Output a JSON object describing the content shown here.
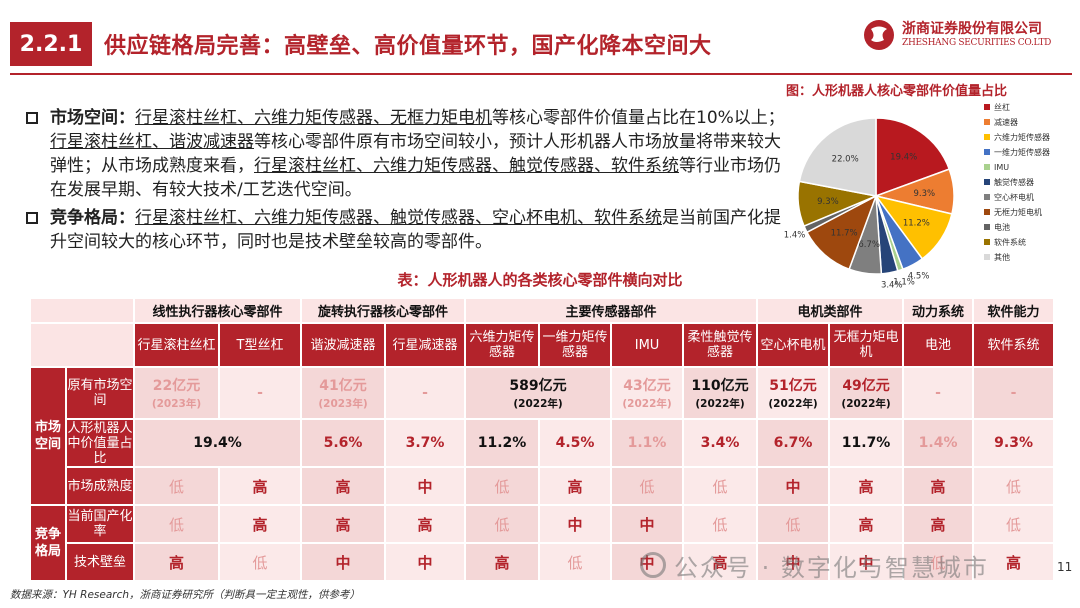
{
  "header": {
    "section_no": "2.2.1",
    "title": "供应链格局完善：高壁垒、高价值量环节，国产化降本空间大",
    "company_cn": "浙商证券股份有限公司",
    "company_en": "ZHESHANG SECURITIES CO.LTD"
  },
  "bullets": [
    {
      "label": "市场空间：",
      "segments": [
        {
          "t": "行星滚柱丝杠、六维力矩传感器、无框力矩电机",
          "u": true
        },
        {
          "t": "等核心零部件价值量占比在10%以上；",
          "u": false
        },
        {
          "t": "行星滚柱丝杠、谐波减速器",
          "u": true
        },
        {
          "t": "等核心零部件原有市场空间较小，预计人形机器人市场放量将带来较大弹性；从市场成熟度来看，",
          "u": false
        },
        {
          "t": "行星滚柱丝杠、六维力矩传感器、触觉传感器、软件系统",
          "u": true
        },
        {
          "t": "等行业市场仍在发展早期、有较大技术/工艺迭代空间。",
          "u": false
        }
      ]
    },
    {
      "label": "竞争格局：",
      "segments": [
        {
          "t": "行星滚柱丝杠、六维力矩传感器、触觉传感器、空心杯电机、软件系统",
          "u": true
        },
        {
          "t": "是当前国产化提升空间较大的核心环节，同时也是技术壁垒较高的零部件。",
          "u": false
        }
      ]
    }
  ],
  "chart_title": "图：人形机器人核心零部件价值量占比",
  "chart_data": {
    "type": "pie",
    "title": "图：人形机器人核心零部件价值量占比",
    "labels": [
      "丝杠",
      "减速器",
      "六维力矩传感器",
      "一维力矩传感器",
      "IMU",
      "触觉传感器",
      "空心杯电机",
      "无框力矩电机",
      "电池",
      "软件系统",
      "其他"
    ],
    "values": [
      19.4,
      9.3,
      11.2,
      4.5,
      1.1,
      3.4,
      6.7,
      11.7,
      1.4,
      9.3,
      22.0
    ],
    "value_labels": [
      "19.4%",
      "9.3%",
      "11.2%",
      "4.5%",
      "1.1%",
      "3.4%",
      "6.7%",
      "11.7%",
      "1.4%",
      "9.3%",
      "22.0%"
    ],
    "colors": [
      "#b8191f",
      "#ed7d31",
      "#ffc000",
      "#4472c4",
      "#a9d18e",
      "#264478",
      "#7f7f7f",
      "#9e480e",
      "#636363",
      "#997300",
      "#d9d9d9"
    ],
    "legend_position": "right"
  },
  "table": {
    "title": "表：人形机器人的各类核心零部件横向对比",
    "groups": [
      "线性执行器核心零部件",
      "旋转执行器核心零部件",
      "主要传感器部件",
      "电机类部件",
      "动力系统",
      "软件能力"
    ],
    "components": [
      "行星滚柱丝杠",
      "T型丝杠",
      "谐波减速器",
      "行星减速器",
      "六维力矩传感器",
      "一维力矩传感器",
      "IMU",
      "柔性触觉传感器",
      "空心杯电机",
      "无框力矩电机",
      "电池",
      "软件系统"
    ],
    "side_market": "市场空间",
    "side_compete": "竞争格局",
    "row_labels": [
      "原有市场空间",
      "人形机器人中价值量占比",
      "市场成熟度",
      "当前国产化率",
      "技术壁垒"
    ],
    "market_size": {
      "c0": {
        "v": "22亿元",
        "y": "(2023年)"
      },
      "c1": {
        "v": "-"
      },
      "c2": {
        "v": "41亿元",
        "y": "(2023年)"
      },
      "c3": {
        "v": "-"
      },
      "c45": {
        "v": "589亿元",
        "y": "(2022年)"
      },
      "c6": {
        "v": "43亿元",
        "y": "(2022年)"
      },
      "c7": {
        "v": "110亿元",
        "y": "(2022年)"
      },
      "c8": {
        "v": "51亿元",
        "y": "(2022年)"
      },
      "c9": {
        "v": "49亿元",
        "y": "(2022年)"
      },
      "c10": {
        "v": "-"
      },
      "c11": {
        "v": "-"
      }
    },
    "value_share": {
      "c01": "19.4%",
      "c2": "5.6%",
      "c3": "3.7%",
      "c4": "11.2%",
      "c5": "4.5%",
      "c6": "1.1%",
      "c7": "3.4%",
      "c8": "6.7%",
      "c9": "11.7%",
      "c10": "1.4%",
      "c11": "9.3%"
    },
    "maturity": [
      "低",
      "高",
      "高",
      "中",
      "低",
      "高",
      "低",
      "低",
      "中",
      "高",
      "高",
      "低"
    ],
    "localization": [
      "低",
      "高",
      "高",
      "高",
      "低",
      "中",
      "中",
      "低",
      "低",
      "高",
      "高",
      "低"
    ],
    "barrier": [
      "高",
      "低",
      "中",
      "中",
      "高",
      "低",
      "中",
      "高",
      "中",
      "中",
      "低",
      "高"
    ]
  },
  "footer": {
    "source": "数据来源：YH Research，浙商证券研究所（判断具一定主观性，供参考）",
    "page_number": "11",
    "watermark": "公众号 · 数字化与智慧城市"
  }
}
